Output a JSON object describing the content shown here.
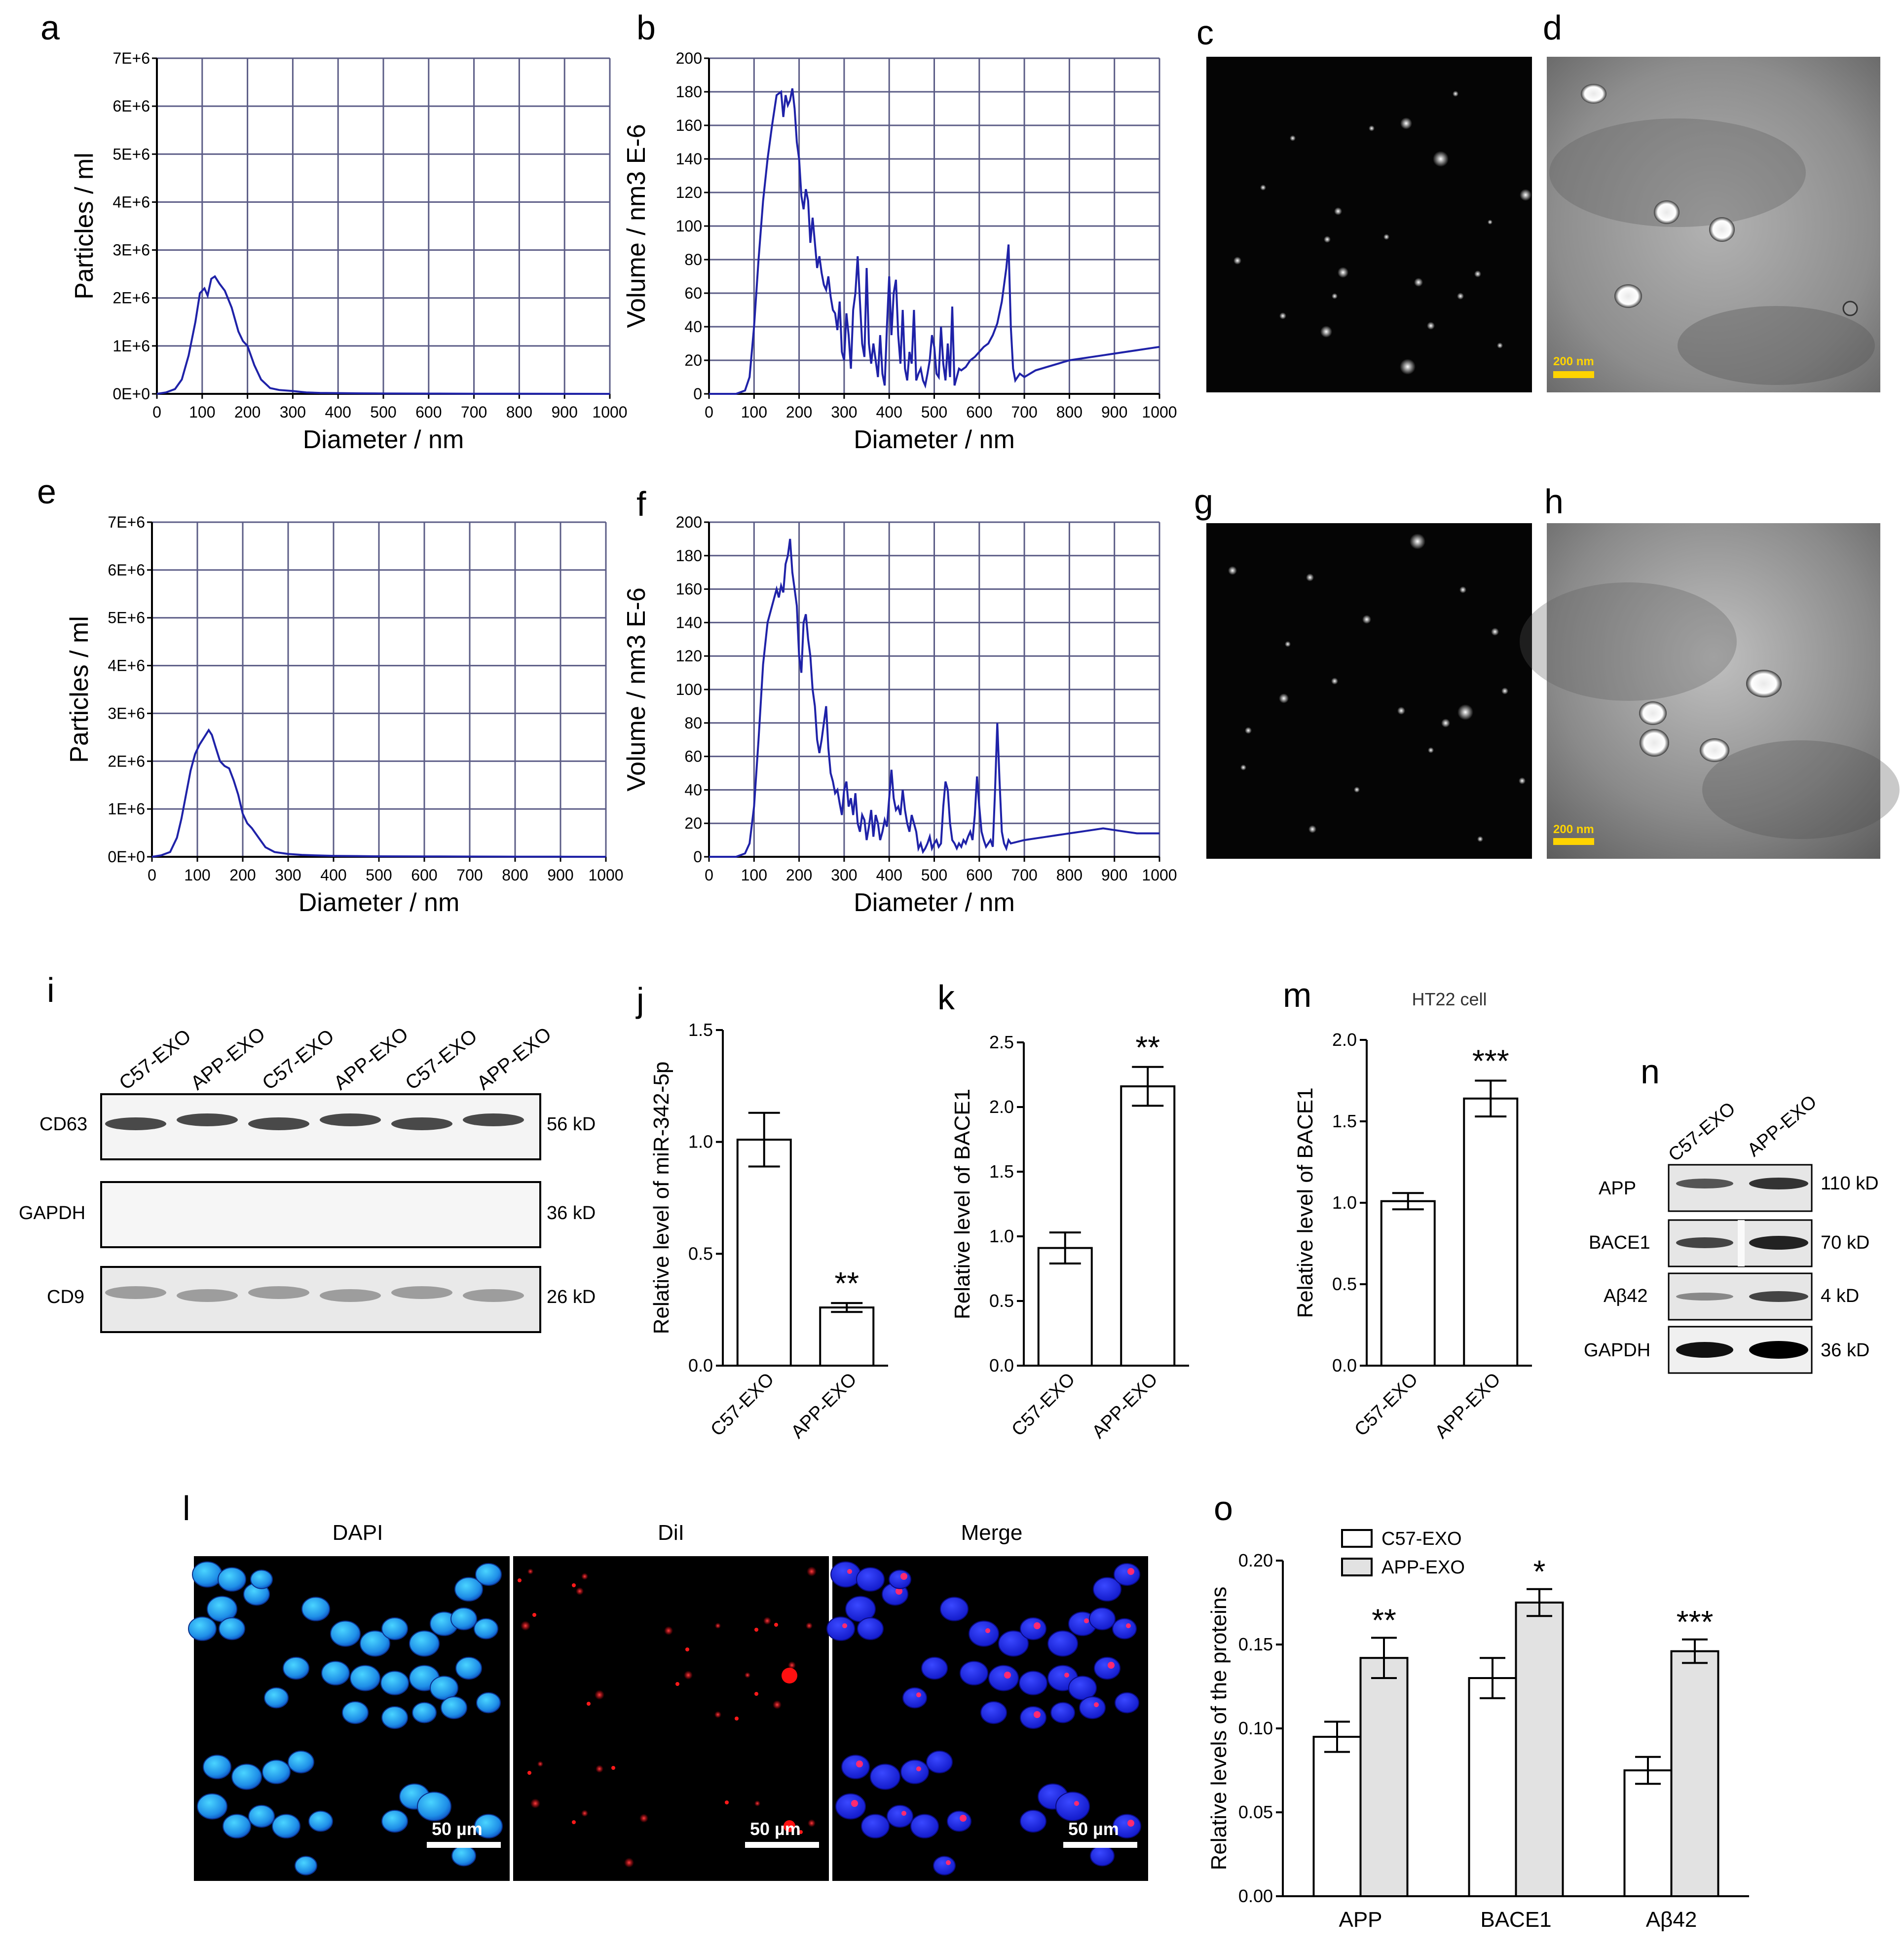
{
  "panel_letters": {
    "a": "a",
    "b": "b",
    "c": "c",
    "d": "d",
    "e": "e",
    "f": "f",
    "g": "g",
    "h": "h",
    "i": "i",
    "j": "j",
    "k": "k",
    "l": "l",
    "m": "m",
    "n": "n",
    "o": "o"
  },
  "colors": {
    "line": "#1f22a8",
    "grid": "#5b5c86",
    "error_bar": "#000000",
    "bar_white": "#ffffff",
    "bar_gray": "#e2e2e2",
    "scale_bar": "#ffd400",
    "dapi": "#1d6de6",
    "dil": "#e01020"
  },
  "nta_axis": {
    "x_label": "Diameter / nm",
    "x_ticks": [
      "0",
      "100",
      "200",
      "300",
      "400",
      "500",
      "600",
      "700",
      "800",
      "900",
      "1000"
    ],
    "particles_ylabel": "Particles / ml",
    "particles_ticks": [
      "0E+0",
      "1E+6",
      "2E+6",
      "3E+6",
      "4E+6",
      "5E+6",
      "6E+6",
      "7E+6"
    ],
    "volume_ylabel": "Volume / nm3 E-6",
    "volume_ticks": [
      "0",
      "20",
      "40",
      "60",
      "80",
      "100",
      "120",
      "140",
      "160",
      "180",
      "200"
    ]
  },
  "tem": {
    "scale_label": "200 nm"
  },
  "western_i": {
    "lanes": [
      "C57-EXO",
      "APP-EXO",
      "C57-EXO",
      "APP-EXO",
      "C57-EXO",
      "APP-EXO"
    ],
    "rows": [
      {
        "label": "CD63",
        "size": "56 kD"
      },
      {
        "label": "GAPDH",
        "size": "36 kD"
      },
      {
        "label": "CD9",
        "size": "26 kD"
      }
    ]
  },
  "western_n": {
    "lanes": [
      "C57-EXO",
      "APP-EXO"
    ],
    "rows": [
      {
        "label": "APP",
        "size": "110 kD"
      },
      {
        "label": "BACE1",
        "size": "70 kD"
      },
      {
        "label": "Aβ42",
        "size": "4 kD"
      },
      {
        "label": "GAPDH",
        "size": "36 kD"
      }
    ]
  },
  "fluorescence": {
    "titles": [
      "DAPI",
      "DiI",
      "Merge"
    ],
    "scale_label": "50 µm"
  },
  "chart_data": [
    {
      "panel": "a",
      "type": "line",
      "xlabel": "Diameter / nm",
      "ylabel": "Particles / ml",
      "xlim": [
        0,
        1000
      ],
      "ylim": [
        0,
        7000000
      ],
      "grid": true,
      "x": [
        0,
        20,
        40,
        55,
        70,
        85,
        95,
        105,
        112,
        120,
        128,
        138,
        150,
        165,
        180,
        190,
        200,
        215,
        230,
        250,
        270,
        300,
        330,
        360,
        400,
        450,
        500,
        600,
        700,
        800,
        900,
        1000
      ],
      "y": [
        0,
        30000,
        100000,
        300000,
        800000,
        1500000,
        2100000,
        2200000,
        2050000,
        2400000,
        2450000,
        2300000,
        2150000,
        1800000,
        1300000,
        1100000,
        1000000,
        600000,
        300000,
        120000,
        80000,
        60000,
        30000,
        20000,
        15000,
        10000,
        8000,
        5000,
        3000,
        2000,
        1000,
        0
      ]
    },
    {
      "panel": "b",
      "type": "line",
      "xlabel": "Diameter / nm",
      "ylabel": "Volume / nm3 E-6",
      "xlim": [
        0,
        1000
      ],
      "ylim": [
        0,
        200
      ],
      "grid": true,
      "x": [
        0,
        60,
        80,
        90,
        100,
        110,
        120,
        130,
        140,
        150,
        160,
        165,
        170,
        175,
        180,
        185,
        190,
        195,
        200,
        205,
        210,
        215,
        220,
        225,
        230,
        235,
        240,
        245,
        250,
        255,
        260,
        265,
        270,
        275,
        280,
        285,
        290,
        295,
        300,
        305,
        310,
        315,
        320,
        325,
        330,
        335,
        340,
        345,
        350,
        355,
        360,
        365,
        370,
        375,
        380,
        385,
        390,
        395,
        400,
        405,
        410,
        415,
        420,
        425,
        430,
        435,
        440,
        445,
        450,
        455,
        460,
        465,
        470,
        475,
        480,
        485,
        490,
        495,
        500,
        505,
        510,
        515,
        520,
        525,
        530,
        535,
        540,
        545,
        550,
        555,
        560,
        565,
        570,
        575,
        580,
        590,
        600,
        610,
        620,
        630,
        640,
        650,
        660,
        665,
        670,
        675,
        680,
        690,
        700,
        725,
        750,
        775,
        800,
        825,
        850,
        875,
        900,
        925,
        950,
        975,
        1000
      ],
      "y": [
        0,
        0,
        2,
        10,
        40,
        80,
        115,
        140,
        160,
        178,
        180,
        165,
        178,
        172,
        175,
        182,
        170,
        150,
        140,
        118,
        110,
        122,
        115,
        90,
        105,
        90,
        75,
        82,
        72,
        65,
        62,
        70,
        58,
        50,
        48,
        38,
        55,
        25,
        20,
        48,
        35,
        15,
        50,
        60,
        82,
        55,
        30,
        22,
        75,
        30,
        18,
        30,
        20,
        10,
        35,
        12,
        5,
        40,
        70,
        35,
        60,
        68,
        35,
        18,
        50,
        15,
        8,
        25,
        18,
        50,
        8,
        12,
        15,
        8,
        5,
        12,
        20,
        35,
        28,
        12,
        10,
        40,
        18,
        8,
        30,
        10,
        52,
        5,
        10,
        15,
        14,
        15,
        16,
        18,
        20,
        22,
        25,
        28,
        30,
        35,
        42,
        55,
        75,
        89,
        40,
        15,
        8,
        12,
        10,
        14,
        16,
        18,
        20,
        21,
        22,
        23,
        24,
        25,
        26,
        27,
        28
      ]
    },
    {
      "panel": "e",
      "type": "line",
      "xlabel": "Diameter / nm",
      "ylabel": "Particles / ml",
      "xlim": [
        0,
        1000
      ],
      "ylim": [
        0,
        7000000
      ],
      "grid": true,
      "x": [
        0,
        20,
        40,
        55,
        65,
        75,
        85,
        95,
        105,
        115,
        125,
        132,
        140,
        150,
        160,
        170,
        180,
        190,
        200,
        210,
        220,
        235,
        250,
        270,
        300,
        330,
        360,
        400,
        450,
        500,
        600,
        700,
        800,
        900,
        1000
      ],
      "y": [
        0,
        30000,
        100000,
        400000,
        800000,
        1300000,
        1800000,
        2150000,
        2350000,
        2500000,
        2650000,
        2550000,
        2300000,
        2000000,
        1900000,
        1850000,
        1600000,
        1300000,
        900000,
        700000,
        600000,
        400000,
        200000,
        100000,
        60000,
        40000,
        30000,
        20000,
        15000,
        10000,
        8000,
        5000,
        3000,
        2000,
        0
      ]
    },
    {
      "panel": "f",
      "type": "line",
      "xlabel": "Diameter / nm",
      "ylabel": "Volume / nm3 E-6",
      "xlim": [
        0,
        1000
      ],
      "ylim": [
        0,
        200
      ],
      "grid": true,
      "x": [
        0,
        60,
        80,
        90,
        100,
        110,
        120,
        130,
        140,
        150,
        155,
        160,
        165,
        170,
        175,
        180,
        185,
        190,
        195,
        200,
        205,
        210,
        215,
        220,
        225,
        230,
        235,
        240,
        245,
        250,
        255,
        260,
        265,
        270,
        275,
        280,
        285,
        290,
        295,
        300,
        305,
        310,
        315,
        320,
        325,
        330,
        335,
        340,
        345,
        350,
        355,
        360,
        365,
        370,
        375,
        380,
        385,
        390,
        395,
        400,
        405,
        410,
        415,
        420,
        425,
        430,
        435,
        440,
        445,
        450,
        455,
        460,
        465,
        470,
        475,
        480,
        485,
        490,
        495,
        500,
        505,
        510,
        515,
        520,
        525,
        530,
        535,
        540,
        545,
        550,
        555,
        560,
        565,
        570,
        575,
        580,
        585,
        590,
        595,
        600,
        605,
        610,
        615,
        620,
        625,
        630,
        635,
        640,
        645,
        650,
        655,
        660,
        665,
        670,
        700,
        725,
        750,
        775,
        800,
        825,
        850,
        875,
        900,
        925,
        950,
        975,
        1000
      ],
      "y": [
        0,
        0,
        2,
        8,
        30,
        70,
        115,
        140,
        150,
        160,
        155,
        162,
        158,
        175,
        180,
        190,
        170,
        160,
        150,
        120,
        110,
        140,
        145,
        130,
        120,
        100,
        90,
        70,
        62,
        70,
        80,
        90,
        65,
        50,
        45,
        38,
        40,
        32,
        25,
        40,
        45,
        30,
        35,
        25,
        38,
        20,
        15,
        25,
        22,
        10,
        18,
        28,
        12,
        25,
        20,
        10,
        15,
        22,
        18,
        35,
        52,
        35,
        28,
        30,
        25,
        40,
        28,
        20,
        15,
        25,
        20,
        15,
        5,
        8,
        3,
        5,
        8,
        12,
        5,
        8,
        10,
        6,
        8,
        30,
        45,
        40,
        20,
        10,
        8,
        5,
        8,
        6,
        10,
        8,
        12,
        15,
        10,
        25,
        48,
        30,
        15,
        10,
        6,
        8,
        10,
        6,
        40,
        80,
        45,
        15,
        8,
        5,
        10,
        8,
        10,
        11,
        12,
        13,
        14,
        15,
        16,
        17,
        16,
        15,
        14,
        14,
        14
      ]
    },
    {
      "panel": "j",
      "type": "bar",
      "categories": [
        "C57-EXO",
        "APP-EXO"
      ],
      "values": [
        1.01,
        0.26
      ],
      "errors": [
        0.12,
        0.02
      ],
      "significance": [
        "",
        "**"
      ],
      "ylabel": "Relative level of miR-342-5p",
      "ylim": [
        0,
        1.5
      ],
      "yticks": [
        "0.0",
        "0.5",
        "1.0",
        "1.5"
      ]
    },
    {
      "panel": "k",
      "type": "bar",
      "categories": [
        "C57-EXO",
        "APP-EXO"
      ],
      "values": [
        0.91,
        2.16
      ],
      "errors": [
        0.12,
        0.15
      ],
      "significance": [
        "",
        "**"
      ],
      "ylabel": "Relative level of BACE1",
      "ylim": [
        0,
        2.5
      ],
      "yticks": [
        "0.0",
        "0.5",
        "1.0",
        "1.5",
        "2.0",
        "2.5"
      ]
    },
    {
      "panel": "m",
      "type": "bar",
      "title": "HT22 cell",
      "categories": [
        "C57-EXO",
        "APP-EXO"
      ],
      "values": [
        1.01,
        1.64
      ],
      "errors": [
        0.05,
        0.11
      ],
      "significance": [
        "",
        "***"
      ],
      "ylabel": "Relative level of BACE1",
      "ylim": [
        0,
        2.0
      ],
      "yticks": [
        "0.0",
        "0.5",
        "1.0",
        "1.5",
        "2.0"
      ]
    },
    {
      "panel": "o",
      "type": "bar",
      "categories": [
        "APP",
        "BACE1",
        "Aβ42"
      ],
      "series": [
        {
          "name": "C57-EXO",
          "values": [
            0.095,
            0.13,
            0.075
          ],
          "errors": [
            0.009,
            0.012,
            0.008
          ]
        },
        {
          "name": "APP-EXO",
          "values": [
            0.142,
            0.175,
            0.146
          ],
          "errors": [
            0.012,
            0.008,
            0.007
          ]
        }
      ],
      "significance": [
        "**",
        "*",
        "***"
      ],
      "ylabel": "Relative levels of the proteins",
      "ylim": [
        0,
        0.2
      ],
      "yticks": [
        "0.00",
        "0.05",
        "0.10",
        "0.15",
        "0.20"
      ],
      "legend": "top-left"
    }
  ]
}
